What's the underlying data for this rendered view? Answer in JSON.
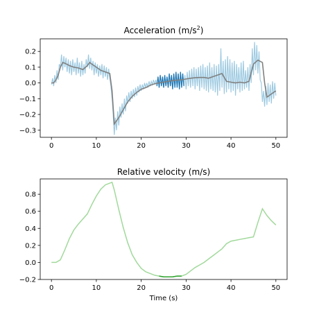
{
  "chart_data": [
    {
      "type": "line",
      "title": "Acceleration (m/s²)",
      "title_base": "Acceleration (m/s",
      "title_sup": "2",
      "title_end": ")",
      "xlabel": "",
      "ylabel": "",
      "xlim": [
        -2.5,
        52.5
      ],
      "ylim": [
        -0.345,
        0.28
      ],
      "xticks": [
        0,
        10,
        20,
        30,
        40,
        50
      ],
      "yticks": [
        -0.3,
        -0.2,
        -0.1,
        0.0,
        0.1,
        0.2
      ],
      "ytick_labels": [
        "−0.3",
        "−0.2",
        "−0.1",
        "0.0",
        "0.1",
        "0.2"
      ],
      "grid": false,
      "colors": {
        "raw": "#9ecae1",
        "raw_highlight": "#1f77b4",
        "smooth": "#808080"
      },
      "highlight_range": [
        23.5,
        29.5
      ],
      "series": [
        {
          "role": "smoothed",
          "x": [
            0,
            0.5,
            1,
            1.5,
            2,
            2.5,
            3,
            4,
            5,
            6,
            7,
            8,
            8.5,
            9,
            10,
            11,
            12,
            13,
            13.5,
            14,
            15,
            16,
            17,
            18,
            19,
            20,
            21,
            22,
            23,
            24,
            25,
            26,
            27,
            28,
            29,
            30,
            31,
            32,
            33,
            34,
            35,
            36,
            37,
            38,
            39,
            40,
            41,
            42,
            43,
            44,
            45,
            46,
            47,
            47.5,
            48,
            49,
            50
          ],
          "y": [
            0.0,
            0.0,
            0.02,
            0.05,
            0.1,
            0.13,
            0.125,
            0.11,
            0.1,
            0.095,
            0.085,
            0.11,
            0.13,
            0.12,
            0.1,
            0.08,
            0.07,
            0.06,
            -0.05,
            -0.26,
            -0.22,
            -0.17,
            -0.12,
            -0.085,
            -0.06,
            -0.04,
            -0.03,
            -0.015,
            -0.005,
            0.0,
            0.005,
            0.01,
            0.015,
            0.018,
            0.02,
            0.025,
            0.03,
            0.033,
            0.035,
            0.035,
            0.03,
            0.04,
            0.05,
            0.06,
            0.01,
            0.005,
            0.0,
            0.005,
            0.0,
            0.01,
            0.12,
            0.145,
            0.13,
            0.0,
            -0.09,
            -0.07,
            -0.05
          ]
        },
        {
          "role": "raw",
          "x": [
            0,
            0.25,
            0.5,
            0.75,
            1,
            1.25,
            1.5,
            1.75,
            2,
            2.25,
            2.5,
            2.75,
            3,
            3.25,
            3.5,
            3.75,
            4,
            4.25,
            4.5,
            4.75,
            5,
            5.25,
            5.5,
            5.75,
            6,
            6.25,
            6.5,
            6.75,
            7,
            7.25,
            7.5,
            7.75,
            8,
            8.25,
            8.5,
            8.75,
            9,
            9.25,
            9.5,
            9.75,
            10,
            10.25,
            10.5,
            10.75,
            11,
            11.25,
            11.5,
            11.75,
            12,
            12.25,
            12.5,
            12.75,
            13,
            13.25,
            13.5,
            13.75,
            14,
            14.25,
            14.5,
            14.75,
            15,
            15.25,
            15.5,
            15.75,
            16,
            16.25,
            16.5,
            16.75,
            17,
            17.25,
            17.5,
            17.75,
            18,
            18.25,
            18.5,
            18.75,
            19,
            19.25,
            19.5,
            19.75,
            20,
            20.25,
            20.5,
            20.75,
            21,
            21.25,
            21.5,
            21.75,
            22,
            22.25,
            22.5,
            22.75,
            23,
            23.25,
            23.5,
            23.75,
            24,
            24.25,
            24.5,
            24.75,
            25,
            25.25,
            25.5,
            25.75,
            26,
            26.25,
            26.5,
            26.75,
            27,
            27.25,
            27.5,
            27.75,
            28,
            28.25,
            28.5,
            28.75,
            29,
            29.25,
            29.5,
            29.75,
            30,
            30.25,
            30.5,
            30.75,
            31,
            31.25,
            31.5,
            31.75,
            32,
            32.25,
            32.5,
            32.75,
            33,
            33.25,
            33.5,
            33.75,
            34,
            34.25,
            34.5,
            34.75,
            35,
            35.25,
            35.5,
            35.75,
            36,
            36.25,
            36.5,
            36.75,
            37,
            37.25,
            37.5,
            37.75,
            38,
            38.25,
            38.5,
            38.75,
            39,
            39.25,
            39.5,
            39.75,
            40,
            40.25,
            40.5,
            40.75,
            41,
            41.25,
            41.5,
            41.75,
            42,
            42.25,
            42.5,
            42.75,
            43,
            43.25,
            43.5,
            43.75,
            44,
            44.25,
            44.5,
            44.75,
            45,
            45.25,
            45.5,
            45.75,
            46,
            46.25,
            46.5,
            46.75,
            47,
            47.25,
            47.5,
            47.75,
            48,
            48.25,
            48.5,
            48.75,
            49,
            49.25,
            49.5,
            49.75,
            50
          ],
          "y": [
            -0.01,
            0.03,
            -0.02,
            0.05,
            0.0,
            0.08,
            0.02,
            0.12,
            0.1,
            0.18,
            0.08,
            0.17,
            0.1,
            0.16,
            0.07,
            0.15,
            0.06,
            0.14,
            0.05,
            0.15,
            0.07,
            0.13,
            0.05,
            0.16,
            0.06,
            0.13,
            0.04,
            0.14,
            0.05,
            0.12,
            0.06,
            0.15,
            0.1,
            0.18,
            0.09,
            0.16,
            0.08,
            0.14,
            0.05,
            0.13,
            0.06,
            0.12,
            0.04,
            0.11,
            0.05,
            0.12,
            0.03,
            0.11,
            0.04,
            0.1,
            0.02,
            0.09,
            0.03,
            -0.02,
            -0.1,
            -0.2,
            -0.33,
            -0.22,
            -0.3,
            -0.18,
            -0.27,
            -0.15,
            -0.22,
            -0.13,
            -0.2,
            -0.1,
            -0.18,
            -0.08,
            -0.13,
            -0.06,
            -0.12,
            -0.05,
            -0.1,
            -0.04,
            -0.09,
            -0.03,
            -0.08,
            -0.02,
            -0.06,
            -0.01,
            -0.05,
            -0.01,
            -0.04,
            0.0,
            -0.03,
            0.0,
            -0.03,
            0.01,
            -0.02,
            0.01,
            -0.01,
            0.02,
            -0.01,
            0.02,
            -0.02,
            0.04,
            -0.03,
            0.05,
            -0.02,
            0.04,
            -0.03,
            0.05,
            -0.02,
            0.04,
            -0.03,
            0.06,
            -0.02,
            0.05,
            -0.04,
            0.06,
            -0.03,
            0.07,
            -0.03,
            0.06,
            -0.04,
            0.07,
            -0.03,
            0.06,
            -0.02,
            0.05,
            -0.04,
            0.07,
            -0.02,
            0.08,
            -0.03,
            0.09,
            -0.02,
            0.1,
            -0.04,
            0.09,
            -0.02,
            0.1,
            -0.05,
            0.11,
            -0.03,
            0.12,
            -0.04,
            0.1,
            -0.05,
            0.11,
            -0.06,
            0.13,
            -0.04,
            0.1,
            -0.05,
            0.12,
            -0.06,
            0.11,
            -0.08,
            0.12,
            -0.05,
            0.22,
            -0.03,
            0.14,
            -0.07,
            0.15,
            -0.06,
            0.17,
            -0.04,
            0.15,
            -0.06,
            0.13,
            -0.05,
            0.14,
            -0.08,
            0.12,
            -0.04,
            0.1,
            -0.06,
            0.13,
            -0.05,
            0.14,
            -0.04,
            0.08,
            -0.03,
            0.1,
            -0.05,
            0.12,
            0.0,
            0.22,
            0.05,
            0.26,
            0.08,
            0.24,
            0.06,
            0.2,
            0.02,
            0.0,
            -0.12,
            -0.05,
            -0.15,
            -0.02,
            -0.14,
            0.0,
            -0.12,
            -0.01,
            -0.13,
            0.01,
            -0.1,
            0.0,
            -0.08
          ]
        }
      ]
    },
    {
      "type": "line",
      "title": "Relative velocity (m/s)",
      "xlabel": "Time (s)",
      "ylabel": "",
      "xlim": [
        -2.5,
        52.5
      ],
      "ylim": [
        -0.2,
        0.98
      ],
      "xticks": [
        0,
        10,
        20,
        30,
        40,
        50
      ],
      "yticks": [
        -0.2,
        0.0,
        0.2,
        0.4,
        0.6,
        0.8
      ],
      "ytick_labels": [
        "−0.2",
        "0.0",
        "0.2",
        "0.4",
        "0.6",
        "0.8"
      ],
      "grid": false,
      "colors": {
        "line": "#a1d99b",
        "highlight": "#2ca02c"
      },
      "highlight_range": [
        23.5,
        29.5
      ],
      "series": [
        {
          "role": "velocity",
          "x": [
            0,
            1,
            2,
            3,
            4,
            5,
            6,
            7,
            8,
            9,
            10,
            11,
            12,
            13,
            13.5,
            14,
            15,
            16,
            17,
            18,
            19,
            20,
            21,
            22,
            23,
            24,
            25,
            26,
            27,
            28,
            29,
            30,
            31,
            32,
            33,
            34,
            35,
            36,
            37,
            38,
            39,
            40,
            41,
            42,
            43,
            44,
            45,
            46,
            47,
            48,
            49,
            50
          ],
          "y": [
            0.0,
            0.0,
            0.03,
            0.15,
            0.28,
            0.38,
            0.45,
            0.51,
            0.57,
            0.68,
            0.78,
            0.86,
            0.91,
            0.93,
            0.94,
            0.85,
            0.62,
            0.41,
            0.23,
            0.09,
            0.0,
            -0.07,
            -0.11,
            -0.13,
            -0.15,
            -0.16,
            -0.17,
            -0.17,
            -0.17,
            -0.16,
            -0.16,
            -0.14,
            -0.1,
            -0.06,
            -0.03,
            0.0,
            0.04,
            0.08,
            0.12,
            0.16,
            0.22,
            0.25,
            0.26,
            0.27,
            0.28,
            0.29,
            0.3,
            0.47,
            0.63,
            0.55,
            0.49,
            0.44
          ]
        }
      ]
    }
  ]
}
